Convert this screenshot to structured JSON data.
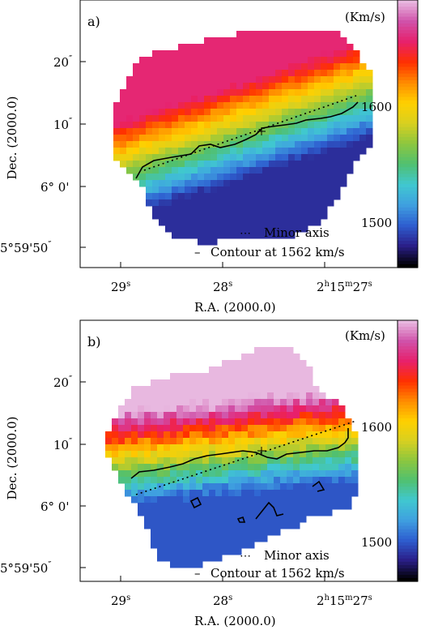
{
  "panels": [
    {
      "label": "a)",
      "unit": "(Km/s)",
      "legend": {
        "minor_axis": "Minor axis",
        "contour": "Contour at 1562 km/s"
      },
      "colorbar": {
        "ticks": [
          1600,
          1500
        ]
      },
      "x_ticks": [
        {
          "main": "29",
          "sup": "s"
        },
        {
          "main": "28",
          "sup": "s"
        },
        {
          "main": "2",
          "sup": "h",
          "main2": "15",
          "sup2": "m",
          "main3": "27",
          "sup3": "s"
        }
      ],
      "y_ticks": [
        {
          "main": "20",
          "sup": "″"
        },
        {
          "main": "10",
          "sup": "″"
        },
        {
          "main": "6° 0'",
          "sup": ""
        },
        {
          "main": "5°59'50",
          "sup": "″"
        }
      ],
      "xlabel": "R.A. (2000.0)",
      "ylabel": "Dec. (2000.0)"
    },
    {
      "label": "b)",
      "unit": "(Km/s)",
      "legend": {
        "minor_axis": "Minor axis",
        "contour": "Contour at 1562 km/s"
      },
      "colorbar": {
        "ticks": [
          1600,
          1500
        ]
      },
      "x_ticks": [
        {
          "main": "29",
          "sup": "s"
        },
        {
          "main": "28",
          "sup": "s"
        },
        {
          "main": "2",
          "sup": "h",
          "main2": "15",
          "sup2": "m",
          "main3": "27",
          "sup3": "s"
        }
      ],
      "y_ticks": [
        {
          "main": "20",
          "sup": "″"
        },
        {
          "main": "10",
          "sup": "″"
        },
        {
          "main": "6° 0'",
          "sup": ""
        },
        {
          "main": "5°59'50",
          "sup": "″"
        }
      ],
      "xlabel": "R.A. (2000.0)",
      "ylabel": "Dec. (2000.0)"
    }
  ],
  "chart_data": [
    {
      "type": "heatmap",
      "panel": "a)",
      "title": "",
      "xlabel": "R.A. (2000.0)",
      "ylabel": "Dec. (2000.0)",
      "colorbar_label": "(Km/s)",
      "colorbar_range": [
        1480,
        1690
      ],
      "colorbar_ticks": [
        1500,
        1600
      ],
      "colormap": [
        "#000000",
        "#2b1f8a",
        "#2e5fd0",
        "#3fa0e0",
        "#40c8d0",
        "#50c070",
        "#8cc63f",
        "#d8d020",
        "#ffd000",
        "#ff8c00",
        "#ff3000",
        "#e8206a",
        "#d050a8",
        "#e8b8e0"
      ],
      "velocity_gradient": {
        "south_edge_kms": 1500,
        "north_edge_kms": 1660
      },
      "contour_kms": 1562,
      "annotations": [
        "Minor axis",
        "Contour at 1562 km/s"
      ]
    },
    {
      "type": "heatmap",
      "panel": "b)",
      "title": "",
      "xlabel": "R.A. (2000.0)",
      "ylabel": "Dec. (2000.0)",
      "colorbar_label": "(Km/s)",
      "colorbar_range": [
        1480,
        1690
      ],
      "colorbar_ticks": [
        1500,
        1600
      ],
      "colormap": [
        "#000000",
        "#2b1f8a",
        "#2e5fd0",
        "#3fa0e0",
        "#40c8d0",
        "#50c070",
        "#8cc63f",
        "#d8d020",
        "#ffd000",
        "#ff8c00",
        "#ff3000",
        "#e8206a",
        "#d050a8",
        "#e8b8e0"
      ],
      "velocity_gradient": {
        "south_edge_kms": 1510,
        "north_edge_kms": 1690
      },
      "contour_kms": 1562,
      "annotations": [
        "Minor axis",
        "Contour at 1562 km/s"
      ]
    }
  ]
}
